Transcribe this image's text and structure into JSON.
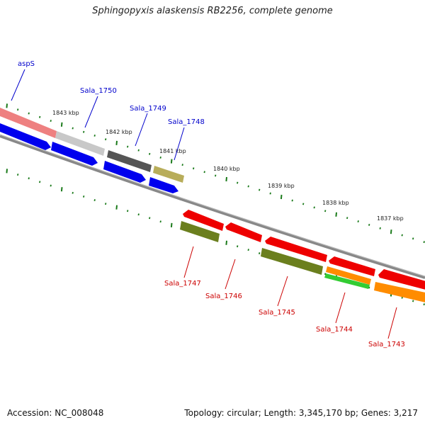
{
  "title": "Sphingopyxis alaskensis RB2256, complete genome",
  "footer": {
    "accession": "Accession: NC_008048",
    "topology": "Topology: circular; Length: 3,345,170 bp; Genes: 3,217"
  },
  "scale_labels": [
    "1843 kbp",
    "1842 kbp",
    "1841 kbp",
    "1840 kbp",
    "1839 kbp",
    "1838 kbp",
    "1837 kbp"
  ],
  "genes_top": [
    "aspS",
    "Sala_1750",
    "Sala_1749",
    "Sala_1748"
  ],
  "genes_bottom": [
    "Sala_1747",
    "Sala_1746",
    "Sala_1745",
    "Sala_1744",
    "Sala_1743"
  ],
  "colors": {
    "forward_label": "#0000cc",
    "reverse_label": "#cc0000",
    "tick": "#1a7a1a",
    "backbone": "#888888",
    "blue": "#0000ee",
    "red": "#ee0000",
    "olive": "#6b7f1e",
    "orange": "#ff8c00",
    "green": "#33cc33",
    "khaki": "#b8ad5a",
    "darkgray": "#555555",
    "lightgray": "#c8c8c8",
    "pink": "#ee8080"
  }
}
